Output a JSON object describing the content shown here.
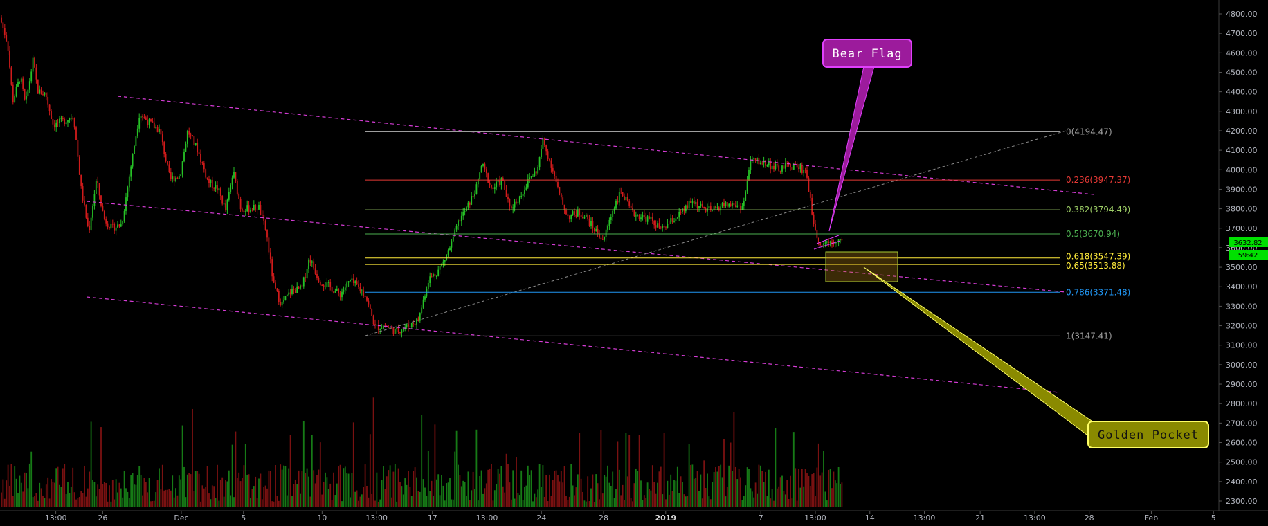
{
  "chart_data": {
    "type": "candlestick",
    "title": "",
    "y_axis": {
      "side": "right",
      "ticks": [
        "4800.00",
        "4700.00",
        "4600.00",
        "4500.00",
        "4400.00",
        "4300.00",
        "4200.00",
        "4100.00",
        "4000.00",
        "3900.00",
        "3800.00",
        "3700.00",
        "3600.00",
        "3500.00",
        "3400.00",
        "3300.00",
        "3200.00",
        "3100.00",
        "3000.00",
        "2900.00",
        "2800.00",
        "2700.00",
        "2600.00",
        "2500.00",
        "2400.00",
        "2300.00"
      ],
      "range": [
        2270,
        4830
      ]
    },
    "x_axis": {
      "ticks": [
        {
          "label": "13:00",
          "pos": 0.044
        },
        {
          "label": "26",
          "pos": 0.081
        },
        {
          "label": "Dec",
          "pos": 0.143
        },
        {
          "label": "5",
          "pos": 0.192
        },
        {
          "label": "10",
          "pos": 0.254
        },
        {
          "label": "13:00",
          "pos": 0.297
        },
        {
          "label": "17",
          "pos": 0.341
        },
        {
          "label": "13:00",
          "pos": 0.384
        },
        {
          "label": "24",
          "pos": 0.427
        },
        {
          "label": "28",
          "pos": 0.476
        },
        {
          "label": "2019",
          "pos": 0.525,
          "bold": true
        },
        {
          "label": "7",
          "pos": 0.6
        },
        {
          "label": "13:00",
          "pos": 0.643
        },
        {
          "label": "14",
          "pos": 0.686
        },
        {
          "label": "13:00",
          "pos": 0.729
        },
        {
          "label": "21",
          "pos": 0.773
        },
        {
          "label": "13:00",
          "pos": 0.816
        },
        {
          "label": "28",
          "pos": 0.859
        },
        {
          "label": "Feb",
          "pos": 0.908
        },
        {
          "label": "5",
          "pos": 0.957
        }
      ]
    },
    "close_path": [
      [
        0,
        4780
      ],
      [
        0.006,
        4650
      ],
      [
        0.01,
        4350
      ],
      [
        0.016,
        4480
      ],
      [
        0.02,
        4330
      ],
      [
        0.026,
        4560
      ],
      [
        0.03,
        4400
      ],
      [
        0.036,
        4390
      ],
      [
        0.042,
        4230
      ],
      [
        0.05,
        4250
      ],
      [
        0.058,
        4280
      ],
      [
        0.064,
        3900
      ],
      [
        0.07,
        3680
      ],
      [
        0.076,
        3950
      ],
      [
        0.082,
        3750
      ],
      [
        0.088,
        3700
      ],
      [
        0.096,
        3720
      ],
      [
        0.104,
        4050
      ],
      [
        0.11,
        4290
      ],
      [
        0.118,
        4240
      ],
      [
        0.126,
        4200
      ],
      [
        0.134,
        3950
      ],
      [
        0.142,
        3970
      ],
      [
        0.148,
        4200
      ],
      [
        0.156,
        4100
      ],
      [
        0.164,
        3940
      ],
      [
        0.172,
        3900
      ],
      [
        0.178,
        3790
      ],
      [
        0.184,
        3990
      ],
      [
        0.19,
        3800
      ],
      [
        0.198,
        3800
      ],
      [
        0.204,
        3810
      ],
      [
        0.21,
        3680
      ],
      [
        0.216,
        3400
      ],
      [
        0.222,
        3310
      ],
      [
        0.23,
        3380
      ],
      [
        0.238,
        3390
      ],
      [
        0.244,
        3550
      ],
      [
        0.252,
        3430
      ],
      [
        0.26,
        3400
      ],
      [
        0.268,
        3360
      ],
      [
        0.276,
        3430
      ],
      [
        0.282,
        3400
      ],
      [
        0.288,
        3360
      ],
      [
        0.296,
        3190
      ],
      [
        0.304,
        3200
      ],
      [
        0.312,
        3170
      ],
      [
        0.322,
        3200
      ],
      [
        0.33,
        3230
      ],
      [
        0.338,
        3440
      ],
      [
        0.344,
        3470
      ],
      [
        0.35,
        3530
      ],
      [
        0.356,
        3620
      ],
      [
        0.362,
        3740
      ],
      [
        0.368,
        3800
      ],
      [
        0.376,
        3910
      ],
      [
        0.38,
        4030
      ],
      [
        0.388,
        3900
      ],
      [
        0.396,
        3950
      ],
      [
        0.402,
        3800
      ],
      [
        0.41,
        3860
      ],
      [
        0.418,
        3960
      ],
      [
        0.424,
        4000
      ],
      [
        0.428,
        4150
      ],
      [
        0.436,
        4000
      ],
      [
        0.442,
        3850
      ],
      [
        0.448,
        3760
      ],
      [
        0.456,
        3780
      ],
      [
        0.462,
        3760
      ],
      [
        0.468,
        3700
      ],
      [
        0.476,
        3640
      ],
      [
        0.484,
        3810
      ],
      [
        0.49,
        3890
      ],
      [
        0.498,
        3780
      ],
      [
        0.506,
        3760
      ],
      [
        0.514,
        3740
      ],
      [
        0.522,
        3690
      ],
      [
        0.53,
        3740
      ],
      [
        0.538,
        3780
      ],
      [
        0.546,
        3840
      ],
      [
        0.554,
        3800
      ],
      [
        0.562,
        3790
      ],
      [
        0.57,
        3820
      ],
      [
        0.578,
        3820
      ],
      [
        0.586,
        3810
      ],
      [
        0.592,
        4050
      ],
      [
        0.6,
        4040
      ],
      [
        0.606,
        4030
      ],
      [
        0.614,
        4000
      ],
      [
        0.62,
        4020
      ],
      [
        0.628,
        4020
      ],
      [
        0.636,
        3990
      ],
      [
        0.64,
        3790
      ],
      [
        0.646,
        3620
      ],
      [
        0.652,
        3630
      ],
      [
        0.66,
        3640
      ],
      [
        0.664,
        3632
      ]
    ],
    "volume_note": "volume histogram below candles",
    "fibonacci": [
      {
        "level": "0",
        "price": 4194.47,
        "label": "0(4194.47)",
        "color": "#9e9e9e"
      },
      {
        "level": "0.236",
        "price": 3947.37,
        "label": "0.236(3947.37)",
        "color": "#e53935"
      },
      {
        "level": "0.382",
        "price": 3794.49,
        "label": "0.382(3794.49)",
        "color": "#9ccc65"
      },
      {
        "level": "0.5",
        "price": 3670.94,
        "label": "0.5(3670.94)",
        "color": "#4caf50"
      },
      {
        "level": "0.618",
        "price": 3547.39,
        "label": "0.618(3547.39)",
        "color": "#ffeb3b"
      },
      {
        "level": "0.65",
        "price": 3513.88,
        "label": "0.65(3513.88)",
        "color": "#ffeb3b"
      },
      {
        "level": "0.786",
        "price": 3371.48,
        "label": "0.786(3371.48)",
        "color": "#2196f3"
      },
      {
        "level": "1",
        "price": 3147.41,
        "label": "1(3147.41)",
        "color": "#9e9e9e"
      }
    ],
    "price_tag": {
      "value": "3632.82",
      "countdown": "59:42",
      "color": "#00e000"
    },
    "annotations": [
      {
        "text": "Bear Flag",
        "fill": "#9c1b9c",
        "border": "#e040fb"
      },
      {
        "text": "Golden Pocket",
        "fill": "#8a8a00",
        "border": "#ffff66"
      }
    ],
    "colors": {
      "up": "#26c226",
      "down": "#d01b1b",
      "channel": "#d63cd6",
      "grid": "#1a1a1a"
    }
  }
}
